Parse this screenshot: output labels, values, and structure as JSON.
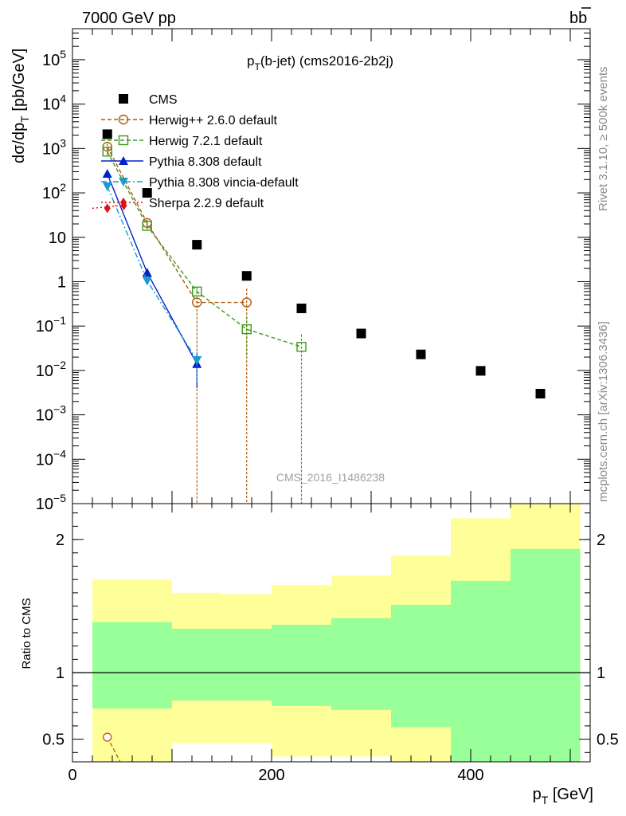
{
  "header": {
    "left": "7000 GeV pp",
    "right_main": "b",
    "right_bar": "b"
  },
  "side_text": {
    "top": "Rivet 3.1.10, ≥ 500k events",
    "bottom": "mcplots.cern.ch [arXiv:1306.3436]"
  },
  "watermark": "CMS_2016_I1486238",
  "chart_data": [
    {
      "panel": "main",
      "type": "scatter",
      "title": "p_T(b-jet) (cms2016-2b2j)",
      "title_main": "p",
      "title_sub": "T",
      "title_rest": "(b-jet) (cms2016-2b2j)",
      "ylabel": "dσ/dp_T [pb/GeV]",
      "ylabel_a": "dσ/dp",
      "ylabel_sub": "T",
      "ylabel_b": " [pb/GeV]",
      "xlim": [
        0,
        520
      ],
      "ylim": [
        1e-05,
        500000.0
      ],
      "yscale": "log",
      "ytick_labels": [
        {
          "v": 100000.0,
          "m": "10",
          "e": "5"
        },
        {
          "v": 10000.0,
          "m": "10",
          "e": "4"
        },
        {
          "v": 1000.0,
          "m": "10",
          "e": "3"
        },
        {
          "v": 100.0,
          "m": "10",
          "e": "2"
        },
        {
          "v": 10,
          "m": "10",
          "e": ""
        },
        {
          "v": 1,
          "m": "1",
          "e": ""
        },
        {
          "v": 0.1,
          "m": "10",
          "e": "−1"
        },
        {
          "v": 0.01,
          "m": "10",
          "e": "−2"
        },
        {
          "v": 0.001,
          "m": "10",
          "e": "−3"
        },
        {
          "v": 0.0001,
          "m": "10",
          "e": "−4"
        },
        {
          "v": 1e-05,
          "m": "10",
          "e": "−5"
        }
      ],
      "legend_position": "top-left",
      "series": [
        {
          "name": "CMS",
          "color": "#000000",
          "marker": "square-filled",
          "line": "none",
          "x": [
            35,
            75,
            125,
            175,
            230,
            290,
            350,
            410,
            470
          ],
          "y": [
            2100,
            100,
            6.8,
            1.35,
            0.25,
            0.068,
            0.023,
            0.0098,
            0.003
          ]
        },
        {
          "name": "Herwig++ 2.6.0 default",
          "color": "#b05a10",
          "marker": "circle-open",
          "line": "dashed",
          "x": [
            35,
            75,
            125,
            175
          ],
          "y": [
            1100,
            21,
            0.34,
            0.34
          ],
          "err_up": [
            1300,
            25,
            0.45,
            0.7
          ],
          "err_down": [
            900,
            17,
            1e-05,
            1e-05
          ]
        },
        {
          "name": "Herwig 7.2.1 default",
          "color": "#3c9a1a",
          "marker": "square-open",
          "line": "dashed",
          "x": [
            35,
            75,
            125,
            175,
            230
          ],
          "y": [
            850,
            18,
            0.6,
            0.085,
            0.034
          ],
          "err_up": [
            1000,
            21,
            0.72,
            0.16,
            0.065
          ],
          "err_down": [
            700,
            15,
            0.48,
            0.022,
            1e-05
          ]
        },
        {
          "name": "Pythia 8.308 default",
          "color": "#0022cc",
          "marker": "triangle-up",
          "line": "solid",
          "x": [
            35,
            75,
            125
          ],
          "y": [
            270,
            1.6,
            0.014
          ],
          "err_up": [
            300,
            1.8,
            0.025
          ],
          "err_down": [
            240,
            1.4,
            0.004
          ]
        },
        {
          "name": "Pythia 8.308 vincia-default",
          "color": "#1a9bcc",
          "marker": "triangle-down",
          "line": "dashdot",
          "x": [
            35,
            75,
            125
          ],
          "y": [
            140,
            1.05,
            0.017
          ],
          "err_up": [
            160,
            1.2,
            0.026
          ],
          "err_down": [
            120,
            0.9,
            0.0055
          ]
        },
        {
          "name": "Sherpa 2.2.9 default",
          "color": "#dd1111",
          "marker": "diamond",
          "line": "dotted",
          "x": [
            35,
            50
          ],
          "y": [
            45,
            52
          ],
          "line_x": [
            20,
            50
          ],
          "line_y": [
            45,
            52
          ]
        }
      ]
    },
    {
      "panel": "ratio",
      "type": "area",
      "ylabel": "Ratio to CMS",
      "xlabel": "p_T [GeV]",
      "xlabel_main": "p",
      "xlabel_sub": "T",
      "xlabel_rest": " [GeV]",
      "xlim": [
        0,
        520
      ],
      "ylim": [
        0.33,
        2.27
      ],
      "xticks": [
        0,
        200,
        400
      ],
      "yticks": [
        0.5,
        1,
        2
      ],
      "reference_line": 1,
      "bins": [
        {
          "x0": 20,
          "x1": 100,
          "band_inner": [
            0.73,
            1.38
          ],
          "band_outer": [
            0.33,
            1.7
          ]
        },
        {
          "x0": 100,
          "x1": 150,
          "band_inner": [
            0.79,
            1.33
          ],
          "band_outer": [
            0.47,
            1.6
          ]
        },
        {
          "x0": 150,
          "x1": 200,
          "band_inner": [
            0.79,
            1.33
          ],
          "band_outer": [
            0.47,
            1.59
          ]
        },
        {
          "x0": 200,
          "x1": 260,
          "band_inner": [
            0.75,
            1.36
          ],
          "band_outer": [
            0.37,
            1.66
          ]
        },
        {
          "x0": 260,
          "x1": 320,
          "band_inner": [
            0.72,
            1.41
          ],
          "band_outer": [
            0.37,
            1.73
          ]
        },
        {
          "x0": 320,
          "x1": 380,
          "band_inner": [
            0.59,
            1.51
          ],
          "band_outer": [
            0.33,
            1.88
          ]
        },
        {
          "x0": 380,
          "x1": 440,
          "band_inner": [
            0.33,
            1.69
          ],
          "band_outer": [
            0.33,
            2.16
          ]
        },
        {
          "x0": 440,
          "x1": 510,
          "band_inner": [
            0.33,
            1.93
          ],
          "band_outer": [
            0.33,
            2.27
          ]
        }
      ],
      "series": [
        {
          "name": "Herwig++ 2.6.0 default",
          "color": "#b05a10",
          "x": [
            35,
            48
          ],
          "y": [
            0.515,
            0.33
          ]
        }
      ]
    }
  ]
}
